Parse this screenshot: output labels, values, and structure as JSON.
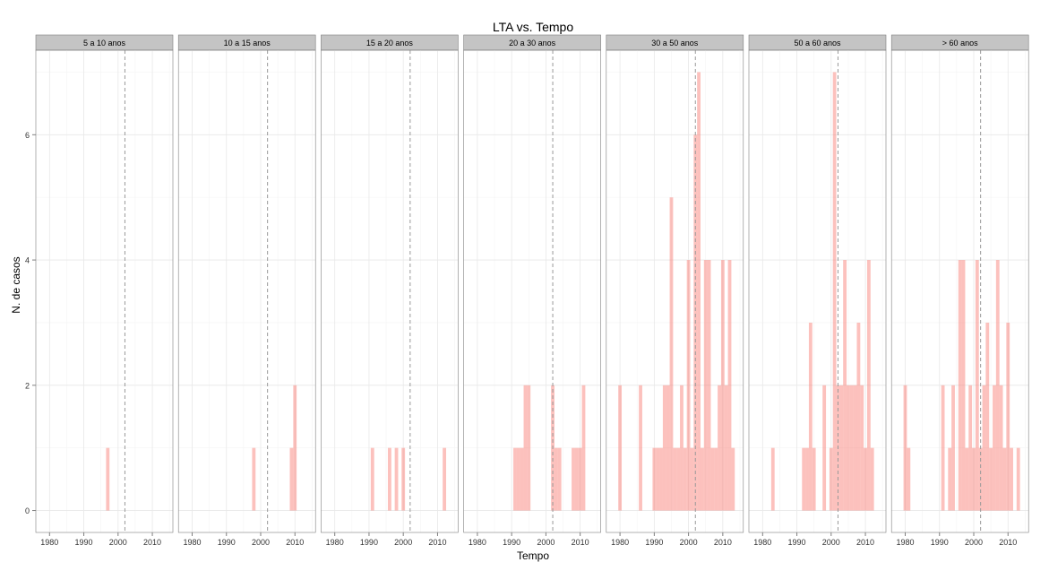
{
  "chart_data": {
    "type": "bar",
    "title": "LTA vs. Tempo",
    "xlabel": "Tempo",
    "ylabel": "N. de casos",
    "xlim": [
      1976,
      2016
    ],
    "ylim": [
      -0.35,
      7.35
    ],
    "x_ticks": [
      1980,
      1990,
      2000,
      2010
    ],
    "x_tick_labels": [
      "1980",
      "1990",
      "2000",
      "2010"
    ],
    "y_ticks": [
      0,
      2,
      4,
      6
    ],
    "y_tick_labels": [
      "0",
      "2",
      "4",
      "6"
    ],
    "bin_width": 1,
    "reference_line": {
      "x": 2002,
      "style": "dashed"
    },
    "grid": true,
    "bar_color": "#f8766d",
    "bar_opacity": 0.45,
    "panels": [
      {
        "label": "5 a 10 anos",
        "bars": [
          [
            1997,
            1
          ]
        ]
      },
      {
        "label": "10 a 15 anos",
        "bars": [
          [
            1998,
            1
          ],
          [
            2009,
            1
          ],
          [
            2010,
            2
          ]
        ]
      },
      {
        "label": "15 a 20 anos",
        "bars": [
          [
            1991,
            1
          ],
          [
            1996,
            1
          ],
          [
            1998,
            1
          ],
          [
            2000,
            1
          ],
          [
            2012,
            1
          ]
        ]
      },
      {
        "label": "20 a 30 anos",
        "bars": [
          [
            1991,
            1
          ],
          [
            1992,
            1
          ],
          [
            1993,
            1
          ],
          [
            1994,
            2
          ],
          [
            1995,
            2
          ],
          [
            2002,
            2
          ],
          [
            2003,
            1
          ],
          [
            2004,
            1
          ],
          [
            2008,
            1
          ],
          [
            2009,
            1
          ],
          [
            2010,
            1
          ],
          [
            2011,
            2
          ]
        ]
      },
      {
        "label": "30 a 50 anos",
        "bars": [
          [
            1980,
            2
          ],
          [
            1986,
            2
          ],
          [
            1990,
            1
          ],
          [
            1991,
            1
          ],
          [
            1992,
            1
          ],
          [
            1993,
            2
          ],
          [
            1994,
            2
          ],
          [
            1995,
            5
          ],
          [
            1996,
            1
          ],
          [
            1997,
            1
          ],
          [
            1998,
            2
          ],
          [
            1999,
            1
          ],
          [
            2000,
            4
          ],
          [
            2001,
            1
          ],
          [
            2002,
            6
          ],
          [
            2003,
            7
          ],
          [
            2004,
            1
          ],
          [
            2005,
            4
          ],
          [
            2006,
            4
          ],
          [
            2007,
            1
          ],
          [
            2008,
            1
          ],
          [
            2009,
            2
          ],
          [
            2010,
            4
          ],
          [
            2011,
            2
          ],
          [
            2012,
            4
          ],
          [
            2013,
            1
          ]
        ]
      },
      {
        "label": "50 a 60 anos",
        "bars": [
          [
            1983,
            1
          ],
          [
            1992,
            1
          ],
          [
            1993,
            1
          ],
          [
            1994,
            3
          ],
          [
            1995,
            1
          ],
          [
            1998,
            2
          ],
          [
            2000,
            1
          ],
          [
            2001,
            7
          ],
          [
            2002,
            2
          ],
          [
            2003,
            2
          ],
          [
            2004,
            4
          ],
          [
            2005,
            2
          ],
          [
            2006,
            2
          ],
          [
            2007,
            2
          ],
          [
            2008,
            3
          ],
          [
            2009,
            2
          ],
          [
            2010,
            1
          ],
          [
            2011,
            4
          ],
          [
            2012,
            1
          ]
        ]
      },
      {
        "label": "> 60 anos",
        "bars": [
          [
            1980,
            2
          ],
          [
            1981,
            1
          ],
          [
            1991,
            2
          ],
          [
            1993,
            1
          ],
          [
            1994,
            2
          ],
          [
            1996,
            4
          ],
          [
            1997,
            4
          ],
          [
            1998,
            1
          ],
          [
            1999,
            2
          ],
          [
            2000,
            1
          ],
          [
            2001,
            4
          ],
          [
            2002,
            1
          ],
          [
            2003,
            2
          ],
          [
            2004,
            3
          ],
          [
            2005,
            1
          ],
          [
            2006,
            2
          ],
          [
            2007,
            4
          ],
          [
            2008,
            2
          ],
          [
            2009,
            1
          ],
          [
            2010,
            3
          ],
          [
            2011,
            1
          ],
          [
            2013,
            1
          ]
        ]
      }
    ]
  }
}
